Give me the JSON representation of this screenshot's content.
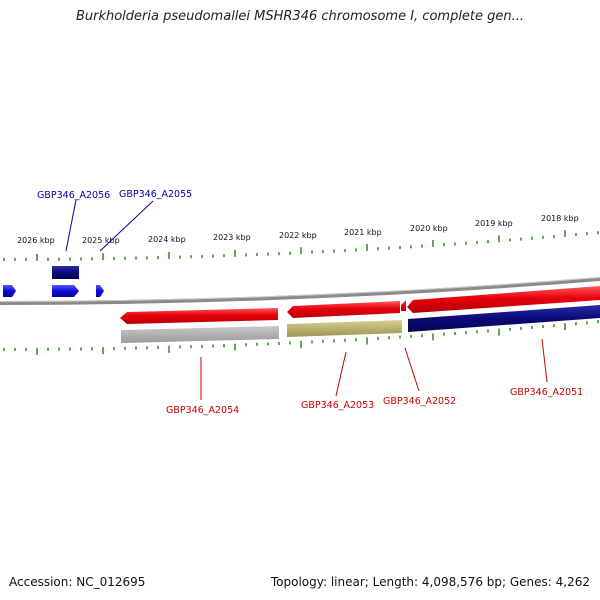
{
  "title": "Burkholderia pseudomallei MSHR346 chromosome I, complete gen...",
  "colors": {
    "tick": "#2b8a1e",
    "backbone": "#8a8a8a",
    "forward_gene": "#e8000b",
    "reverse_gene": "#0b0bd8",
    "dark_feature": "#0a0a78",
    "gray_feature": "#b0b0b0",
    "olive_feature": "#b8b06a",
    "label_top": "#0000aa",
    "label_bottom": "#cc0000"
  },
  "scale_labels": [
    "2026 kbp",
    "2025 kbp",
    "2024 kbp",
    "2023 kbp",
    "2022 kbp",
    "2021 kbp",
    "2020 kbp",
    "2019 kbp",
    "2018 kbp"
  ],
  "genes": [
    {
      "id": "gene-gbp346-a2056",
      "label": "GBP346_A2056",
      "strand": "top",
      "color": "#0000aa"
    },
    {
      "id": "gene-gbp346-a2055",
      "label": "GBP346_A2055",
      "strand": "top",
      "color": "#0000aa"
    },
    {
      "id": "gene-gbp346-a2054",
      "label": "GBP346_A2054",
      "strand": "bottom",
      "color": "#cc0000"
    },
    {
      "id": "gene-gbp346-a2053",
      "label": "GBP346_A2053",
      "strand": "bottom",
      "color": "#cc0000"
    },
    {
      "id": "gene-gbp346-a2052",
      "label": "GBP346_A2052",
      "strand": "bottom",
      "color": "#cc0000"
    },
    {
      "id": "gene-gbp346-a2051",
      "label": "GBP346_A2051",
      "strand": "bottom",
      "color": "#cc0000"
    }
  ],
  "footer": {
    "accession": "Accession: NC_012695",
    "summary": "Topology: linear; Length: 4,098,576 bp; Genes: 4,262"
  }
}
